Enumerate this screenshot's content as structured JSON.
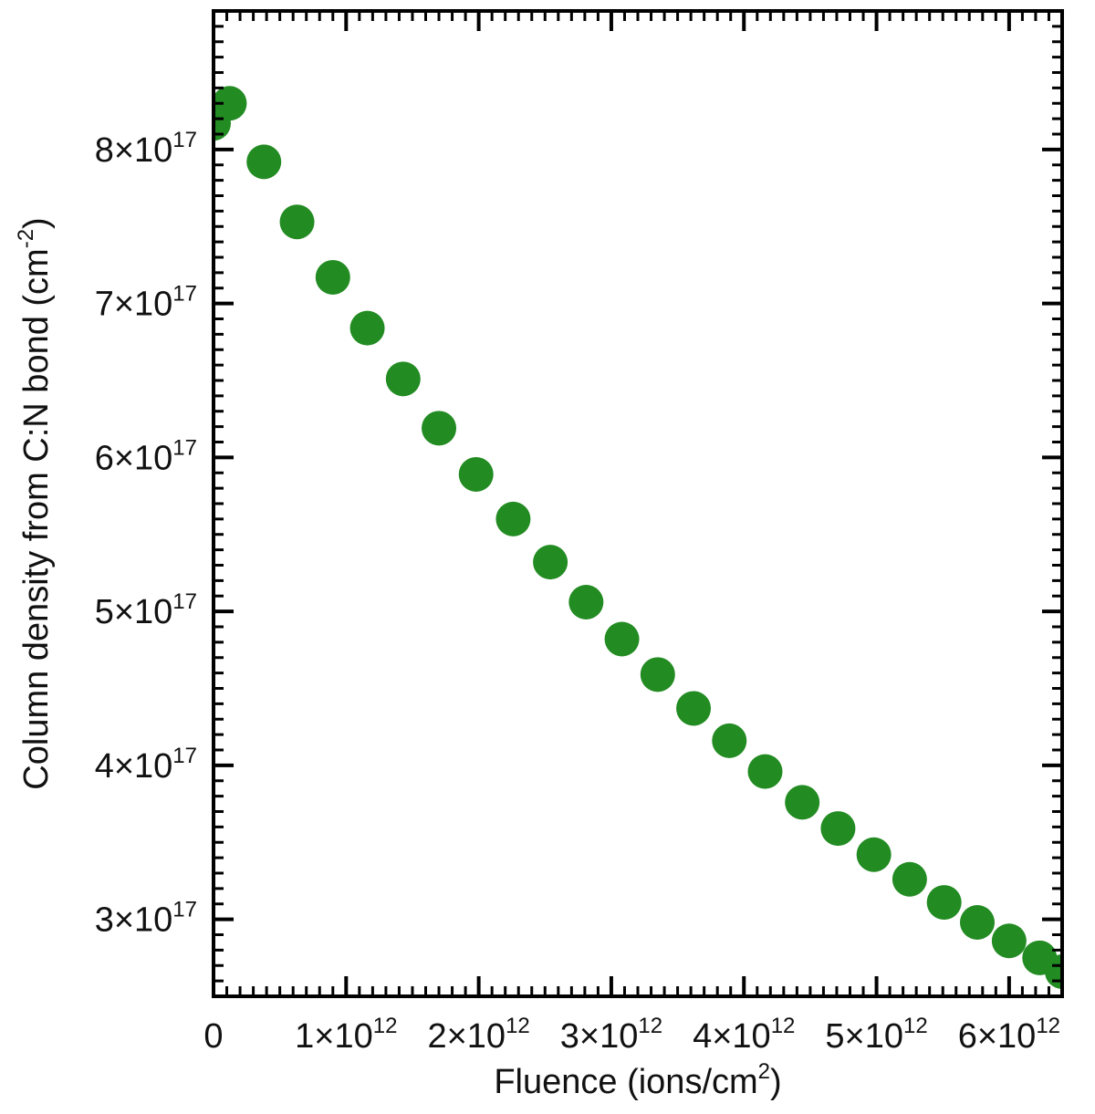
{
  "chart_data": {
    "type": "scatter",
    "title": "",
    "xlabel": "Fluence (ions/cm2)",
    "ylabel": "Column density from C:N bond (cm-2)",
    "xlabel_parts": {
      "main": "Fluence (ions/cm",
      "sup": "2",
      "end": ")"
    },
    "ylabel_parts": {
      "main": "Column density from C:N bond (cm",
      "sup": "-2",
      "end": ")"
    },
    "xlim": [
      0,
      6400000000000.0
    ],
    "ylim": [
      2.5e+17,
      8.9e+17
    ],
    "x_ticks": [
      {
        "value": 0,
        "mantissa": "0",
        "exp": ""
      },
      {
        "value": 1000000000000.0,
        "mantissa": "1×10",
        "exp": "12"
      },
      {
        "value": 2000000000000.0,
        "mantissa": "2×10",
        "exp": "12"
      },
      {
        "value": 3000000000000.0,
        "mantissa": "3×10",
        "exp": "12"
      },
      {
        "value": 4000000000000.0,
        "mantissa": "4×10",
        "exp": "12"
      },
      {
        "value": 5000000000000.0,
        "mantissa": "5×10",
        "exp": "12"
      },
      {
        "value": 6000000000000.0,
        "mantissa": "6×10",
        "exp": "12"
      }
    ],
    "y_ticks": [
      {
        "value": 3e+17,
        "mantissa": "3×10",
        "exp": "17"
      },
      {
        "value": 4e+17,
        "mantissa": "4×10",
        "exp": "17"
      },
      {
        "value": 5e+17,
        "mantissa": "5×10",
        "exp": "17"
      },
      {
        "value": 6e+17,
        "mantissa": "6×10",
        "exp": "17"
      },
      {
        "value": 7e+17,
        "mantissa": "7×10",
        "exp": "17"
      },
      {
        "value": 8e+17,
        "mantissa": "8×10",
        "exp": "17"
      }
    ],
    "grid": false,
    "marker_color": "#228b22",
    "series": [
      {
        "x": [
          0.0,
          120000000000.0,
          380000000000.0,
          630000000000.0,
          900000000000.0,
          1160000000000.0,
          1430000000000.0,
          1700000000000.0,
          1980000000000.0,
          2260000000000.0,
          2540000000000.0,
          2810000000000.0,
          3080000000000.0,
          3350000000000.0,
          3620000000000.0,
          3890000000000.0,
          4160000000000.0,
          4440000000000.0,
          4710000000000.0,
          4980000000000.0,
          5250000000000.0,
          5510000000000.0,
          5760000000000.0,
          6000000000000.0,
          6230000000000.0,
          6400000000000.0
        ],
        "y": [
          8.17e+17,
          8.3e+17,
          7.92e+17,
          7.53e+17,
          7.17e+17,
          6.84e+17,
          6.51e+17,
          6.19e+17,
          5.89e+17,
          5.6e+17,
          5.32e+17,
          5.06e+17,
          4.82e+17,
          4.59e+17,
          4.37e+17,
          4.16e+17,
          3.96e+17,
          3.76e+17,
          3.59e+17,
          3.42e+17,
          3.26e+17,
          3.11e+17,
          2.98e+17,
          2.86e+17,
          2.75e+17,
          2.66e+17
        ]
      }
    ]
  }
}
